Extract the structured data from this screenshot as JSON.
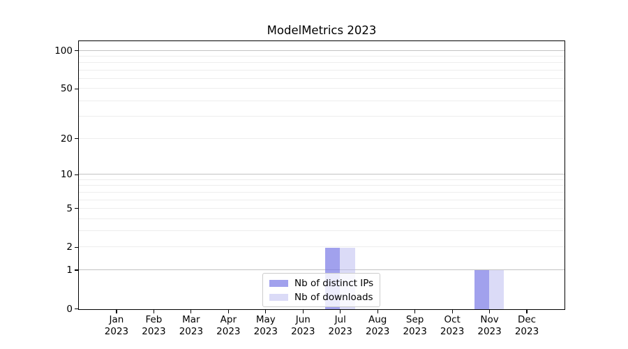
{
  "chart_data": {
    "type": "bar",
    "title": "ModelMetrics 2023",
    "categories": [
      "Jan",
      "Feb",
      "Mar",
      "Apr",
      "May",
      "Jun",
      "Jul",
      "Aug",
      "Sep",
      "Oct",
      "Nov",
      "Dec"
    ],
    "category_year": "2023",
    "series": [
      {
        "name": "Nb of distinct IPs",
        "color": "#a2a2ed",
        "fill": "rgba(121,121,229,0.7)",
        "values": [
          0,
          0,
          0,
          0,
          0,
          0,
          2,
          0,
          0,
          0,
          1,
          0
        ]
      },
      {
        "name": "Nb of downloads",
        "color": "#dbdbf7",
        "fill": "rgba(184,184,240,0.5)",
        "values": [
          0,
          0,
          0,
          0,
          0,
          0,
          2,
          0,
          0,
          0,
          1,
          0
        ]
      }
    ],
    "xlabel": "",
    "ylabel": "",
    "y_scale": "log1p",
    "y_ticks": [
      100,
      50,
      20,
      10,
      5,
      2,
      1,
      0
    ],
    "y_max": 117,
    "grid_major": [
      1,
      10,
      100
    ],
    "grid_minor": [
      2,
      3,
      4,
      5,
      6,
      7,
      8,
      9,
      20,
      30,
      40,
      50,
      60,
      70,
      80,
      90
    ],
    "legend": {
      "position": "lower center",
      "labels": [
        "Nb of distinct IPs",
        "Nb of downloads"
      ]
    },
    "colors": {
      "background": "#ffffff",
      "spine": "#000000",
      "text": "#000000",
      "grid_major": "#c2c2c2",
      "grid_minor": "#ededed",
      "legend_border": "#cccccc"
    }
  }
}
